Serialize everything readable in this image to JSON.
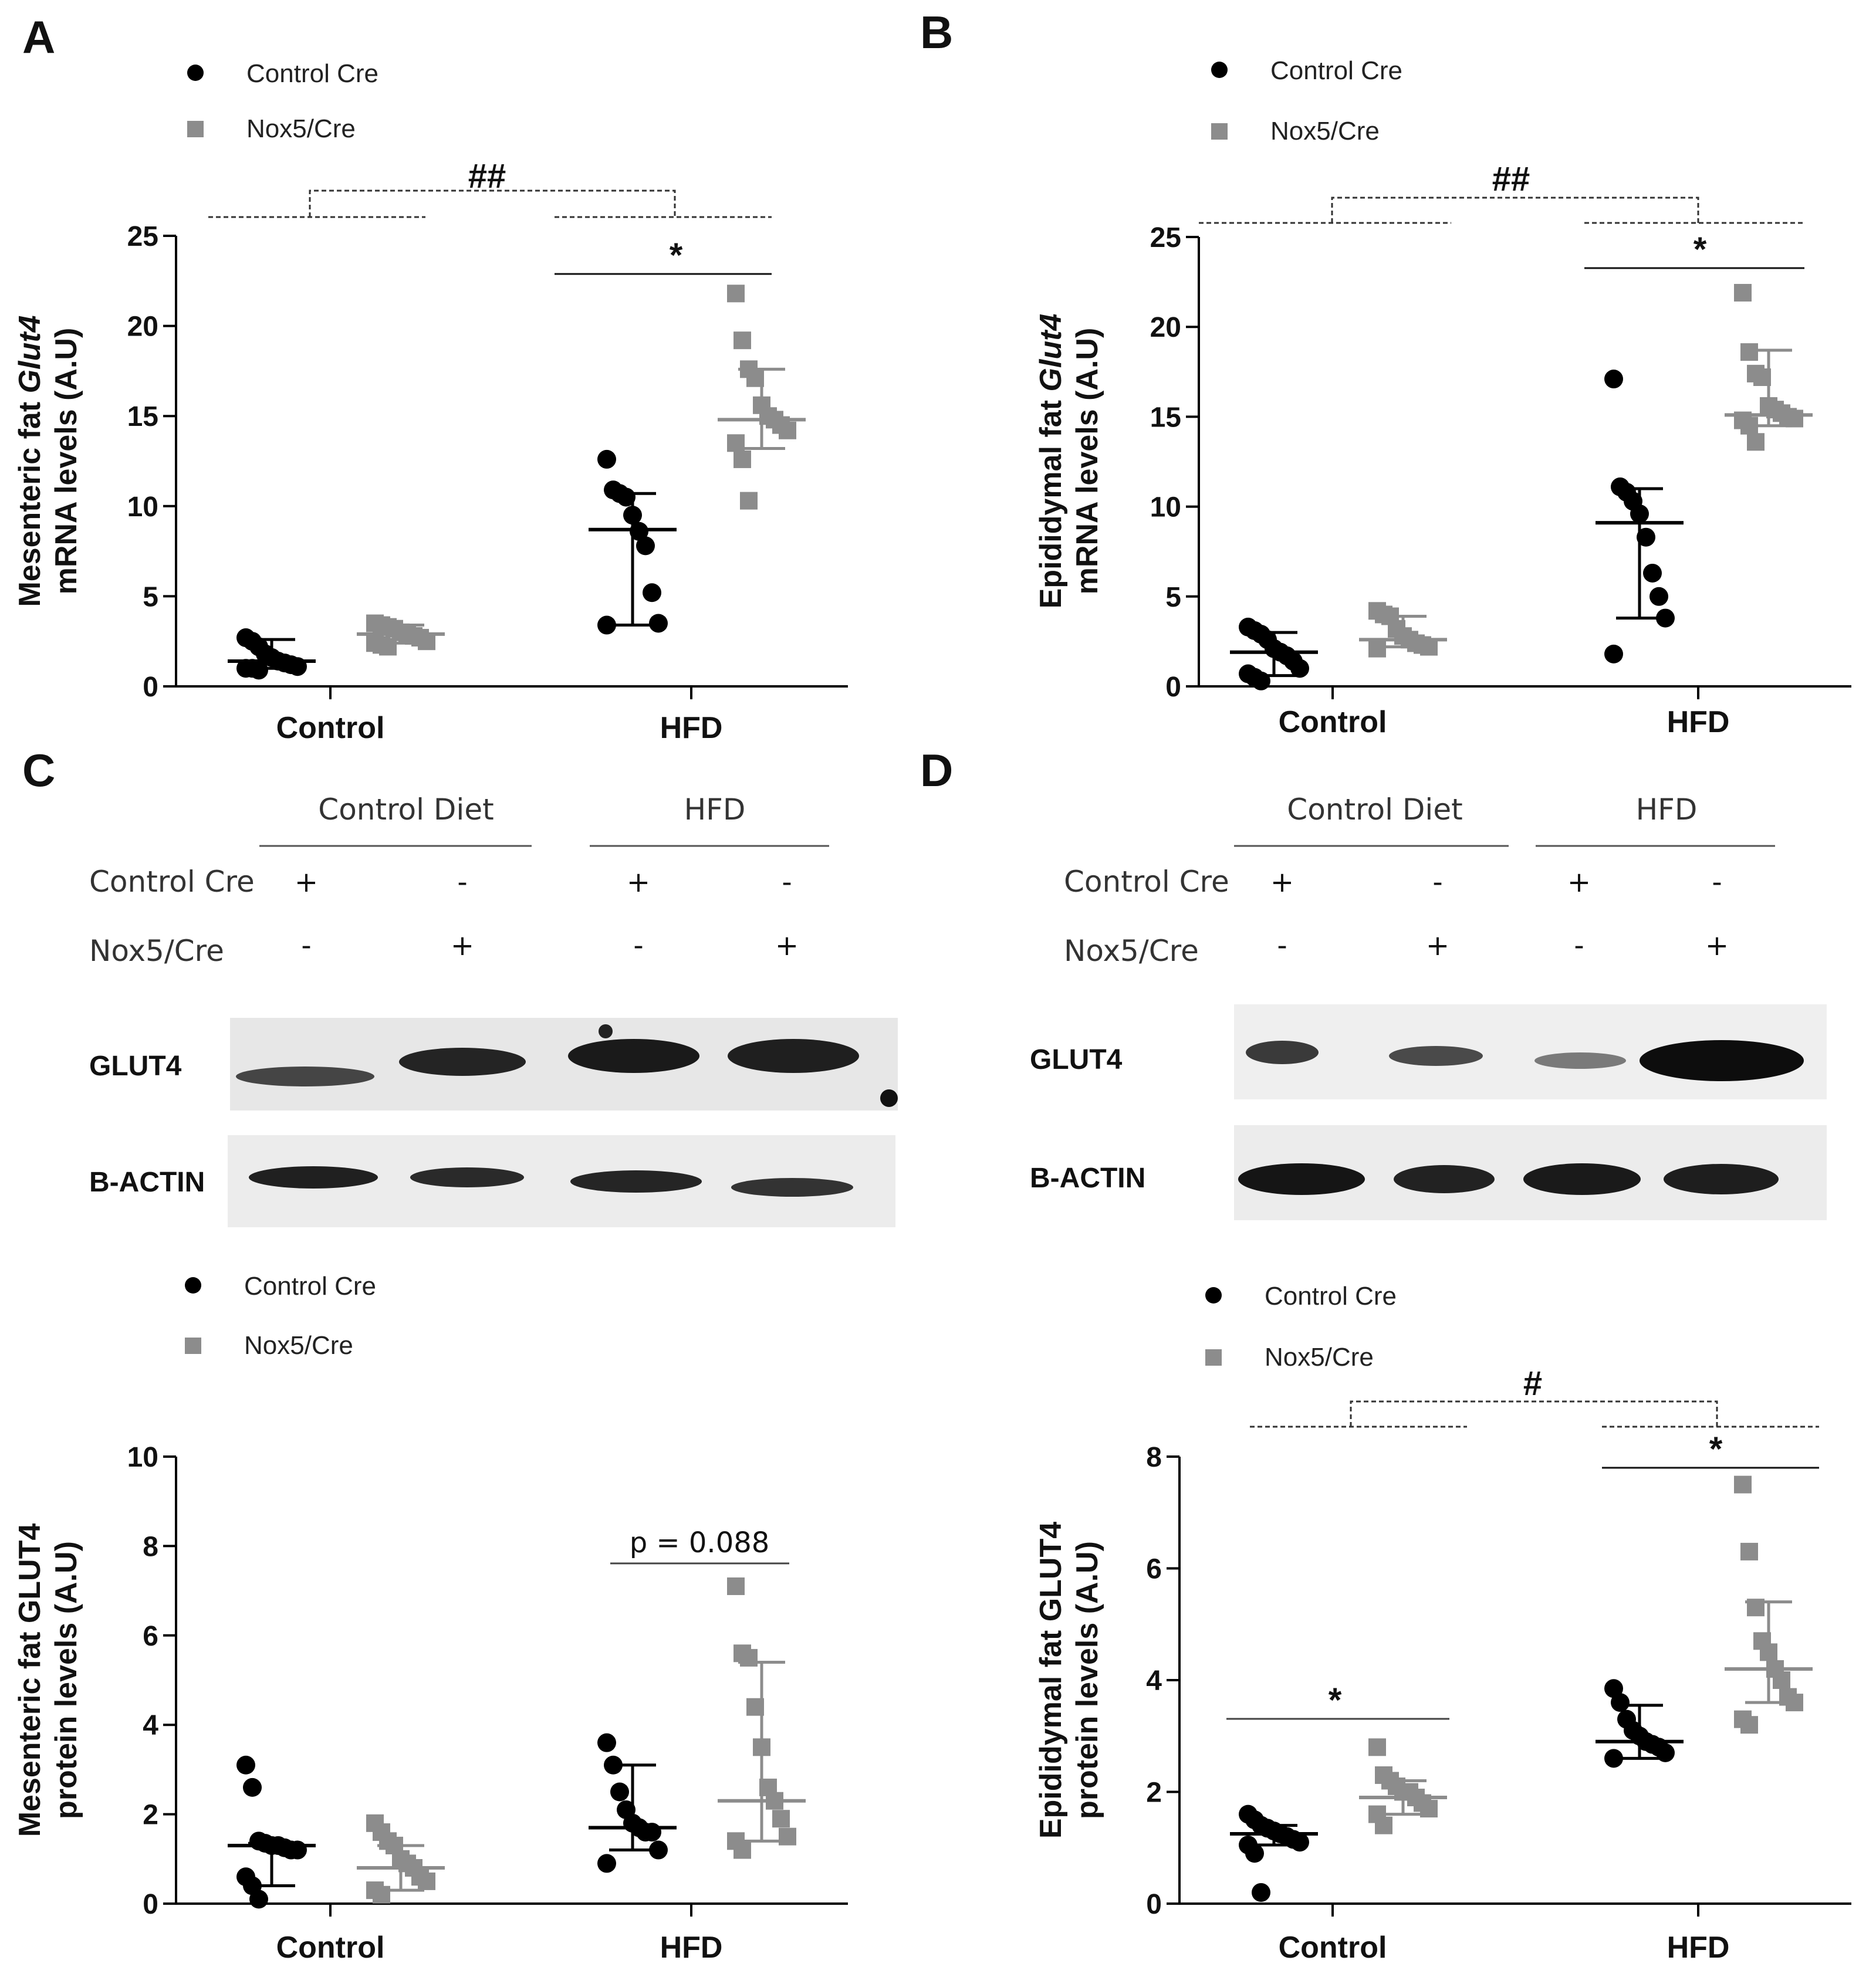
{
  "panels": [
    {
      "letter": "A"
    },
    {
      "letter": "B"
    },
    {
      "letter": "C"
    },
    {
      "letter": "D"
    }
  ],
  "legend": {
    "control_cre": "Control Cre",
    "nox5_cre": "Nox5/Cre"
  },
  "colors": {
    "control_cre": "#000000",
    "nox5_cre": "#8c8c8c"
  },
  "blots": {
    "C": {
      "headers": [
        "Control Diet",
        "HFD"
      ],
      "rows": [
        {
          "label": "Control Cre",
          "signs": [
            "+",
            "-",
            "+",
            "-"
          ]
        },
        {
          "label": "Nox5/Cre",
          "signs": [
            "-",
            "+",
            "-",
            "+"
          ]
        }
      ],
      "bands": [
        "GLUT4",
        "B-ACTIN"
      ]
    },
    "D": {
      "headers": [
        "Control Diet",
        "HFD"
      ],
      "rows": [
        {
          "label": "Control Cre",
          "signs": [
            "+",
            "-",
            "+",
            "-"
          ]
        },
        {
          "label": "Nox5/Cre",
          "signs": [
            "-",
            "+",
            "-",
            "+"
          ]
        }
      ],
      "bands": [
        "GLUT4",
        "B-ACTIN"
      ]
    }
  },
  "chart_data": [
    {
      "panel": "A",
      "type": "scatter",
      "categories": [
        "Control",
        "HFD"
      ],
      "ylabel": [
        "Mesenteric fat Glut4",
        "mRNA levels (A.U)"
      ],
      "ylabel_italic_word": "Glut4",
      "ylim": [
        0,
        25
      ],
      "yticks": [
        0,
        5,
        10,
        15,
        20,
        25
      ],
      "series": [
        {
          "name": "Control Cre",
          "marker": "circle",
          "groups": [
            [
              2.7,
              2.5,
              2.2,
              1.8,
              1.6,
              1.4,
              1.3,
              1.2,
              1.1,
              1.0,
              1.0,
              0.9
            ],
            [
              12.6,
              10.9,
              10.7,
              10.5,
              9.5,
              8.6,
              7.8,
              5.2,
              3.5,
              3.4
            ]
          ],
          "center": [
            1.4,
            8.7
          ],
          "err_low": [
            1.0,
            3.4
          ],
          "err_high": [
            2.6,
            10.7
          ]
        },
        {
          "name": "Nox5/Cre",
          "marker": "square",
          "groups": [
            [
              3.5,
              3.4,
              3.3,
              3.2,
              3.0,
              2.9,
              2.8,
              2.7,
              2.5,
              2.4,
              2.3,
              2.2
            ],
            [
              21.8,
              19.2,
              17.6,
              17.1,
              15.6,
              15.0,
              14.8,
              14.5,
              14.2,
              13.5,
              12.6,
              10.3
            ]
          ],
          "center": [
            2.9,
            14.8
          ],
          "err_low": [
            2.4,
            13.2
          ],
          "err_high": [
            3.4,
            17.6
          ]
        }
      ],
      "annotations": {
        "hash": "##",
        "star": "*"
      }
    },
    {
      "panel": "B",
      "type": "scatter",
      "categories": [
        "Control",
        "HFD"
      ],
      "ylabel": [
        "Epididymal fat Glut4",
        "mRNA levels (A.U)"
      ],
      "ylabel_italic_word": "Glut4",
      "ylim": [
        0,
        25
      ],
      "yticks": [
        0,
        5,
        10,
        15,
        20,
        25
      ],
      "series": [
        {
          "name": "Control Cre",
          "marker": "circle",
          "groups": [
            [
              3.3,
              3.1,
              2.9,
              2.6,
              2.1,
              1.9,
              1.7,
              1.4,
              1.0,
              0.7,
              0.5,
              0.3
            ],
            [
              17.1,
              11.1,
              10.8,
              10.3,
              9.6,
              8.3,
              6.3,
              5.0,
              3.8,
              1.8
            ]
          ],
          "center": [
            1.9,
            9.1
          ],
          "err_low": [
            0.6,
            3.8
          ],
          "err_high": [
            3.0,
            11.0
          ]
        },
        {
          "name": "Nox5/Cre",
          "marker": "square",
          "groups": [
            [
              4.2,
              4.0,
              3.9,
              3.2,
              2.8,
              2.6,
              2.4,
              2.3,
              2.2,
              2.1
            ],
            [
              21.9,
              18.6,
              17.4,
              17.2,
              15.6,
              15.4,
              15.2,
              15.0,
              14.9,
              14.8,
              14.5,
              13.6
            ]
          ],
          "center": [
            2.6,
            15.1
          ],
          "err_low": [
            2.2,
            14.5
          ],
          "err_high": [
            3.9,
            18.7
          ]
        }
      ],
      "annotations": {
        "hash": "##",
        "star": "*"
      }
    },
    {
      "panel": "C",
      "type": "scatter",
      "categories": [
        "Control",
        "HFD"
      ],
      "ylabel": [
        "Mesenteric fat GLUT4",
        "protein levels (A.U)"
      ],
      "ylim": [
        0,
        10
      ],
      "yticks": [
        0,
        2,
        4,
        6,
        8,
        10
      ],
      "series": [
        {
          "name": "Control Cre",
          "marker": "circle",
          "groups": [
            [
              3.1,
              2.6,
              1.4,
              1.35,
              1.3,
              1.3,
              1.25,
              1.2,
              1.2,
              0.6,
              0.4,
              0.1
            ],
            [
              3.6,
              3.1,
              2.5,
              2.1,
              1.8,
              1.7,
              1.6,
              1.6,
              1.2,
              0.9
            ]
          ],
          "center": [
            1.3,
            1.7
          ],
          "err_low": [
            0.4,
            1.2
          ],
          "err_high": [
            1.35,
            3.1
          ]
        },
        {
          "name": "Nox5/Cre",
          "marker": "square",
          "groups": [
            [
              1.8,
              1.6,
              1.4,
              1.3,
              1.0,
              0.9,
              0.8,
              0.6,
              0.5,
              0.3,
              0.2
            ],
            [
              7.1,
              5.6,
              5.5,
              4.4,
              3.5,
              2.6,
              2.3,
              1.9,
              1.5,
              1.4,
              1.2
            ]
          ],
          "center": [
            0.8,
            2.3
          ],
          "err_low": [
            0.3,
            1.4
          ],
          "err_high": [
            1.3,
            5.4
          ]
        }
      ],
      "annotations": {
        "pvalue": "p = 0.088"
      }
    },
    {
      "panel": "D",
      "type": "scatter",
      "categories": [
        "Control",
        "HFD"
      ],
      "ylabel": [
        "Epididymal fat GLUT4",
        "protein levels (A.U)"
      ],
      "ylim": [
        0,
        8
      ],
      "yticks": [
        0,
        2,
        4,
        6,
        8
      ],
      "series": [
        {
          "name": "Control Cre",
          "marker": "circle",
          "groups": [
            [
              1.6,
              1.5,
              1.4,
              1.35,
              1.3,
              1.25,
              1.2,
              1.15,
              1.1,
              1.05,
              0.9,
              0.2
            ],
            [
              3.85,
              3.6,
              3.3,
              3.1,
              3.0,
              2.9,
              2.85,
              2.8,
              2.7,
              2.6
            ]
          ],
          "center": [
            1.25,
            2.9
          ],
          "err_low": [
            1.05,
            2.6
          ],
          "err_high": [
            1.4,
            3.55
          ]
        },
        {
          "name": "Nox5/Cre",
          "marker": "square",
          "groups": [
            [
              2.8,
              2.3,
              2.2,
              2.1,
              2.0,
              2.0,
              1.9,
              1.8,
              1.7,
              1.6,
              1.4
            ],
            [
              7.5,
              6.3,
              5.3,
              4.7,
              4.5,
              4.2,
              4.0,
              3.7,
              3.6,
              3.3,
              3.2
            ]
          ],
          "center": [
            1.9,
            4.2
          ],
          "err_low": [
            1.6,
            3.6
          ],
          "err_high": [
            2.2,
            5.4
          ]
        }
      ],
      "annotations": {
        "hash": "#",
        "star_hfd": "*",
        "star_control": "*"
      }
    }
  ]
}
